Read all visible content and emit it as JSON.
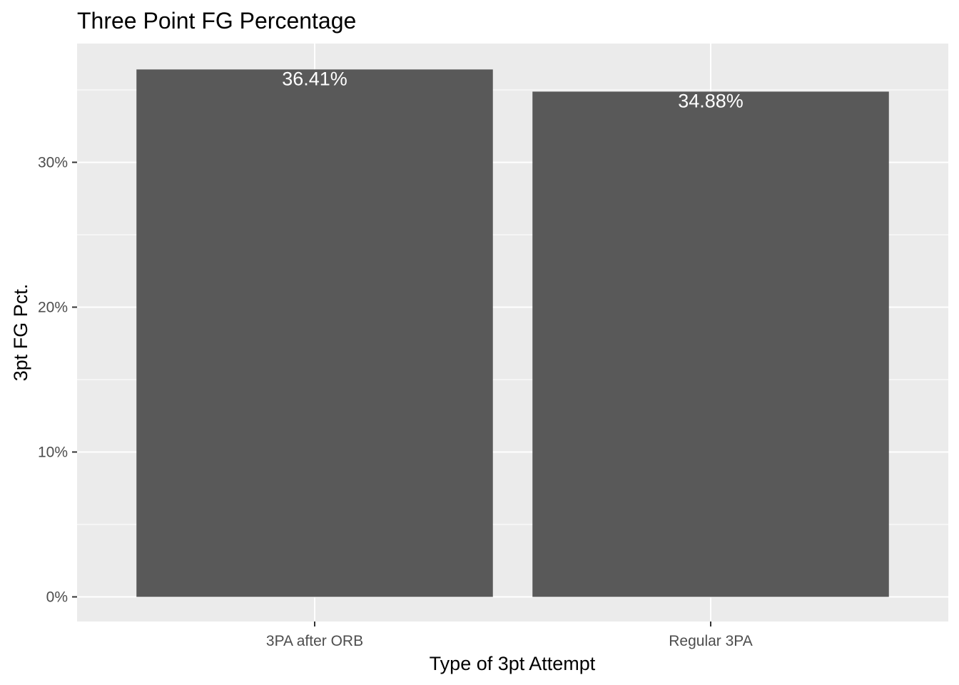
{
  "chart_data": {
    "type": "bar",
    "title": "Three Point FG Percentage",
    "xlabel": "Type of 3pt Attempt",
    "ylabel": "3pt FG Pct.",
    "categories": [
      "3PA after ORB",
      "Regular 3PA"
    ],
    "values": [
      36.41,
      34.88
    ],
    "value_labels": [
      "36.41%",
      "34.88%"
    ],
    "ylim": [
      -1.7,
      38.2
    ],
    "y_ticks": [
      0,
      10,
      20,
      30
    ],
    "y_tick_labels": [
      "0%",
      "10%",
      "20%",
      "30%"
    ],
    "grid": true,
    "legend": "none",
    "colors": {
      "bar": "#595959",
      "panel": "#ebebeb",
      "grid": "#ffffff",
      "bar_label": "#ffffff",
      "axis_tick": "#333333",
      "tick_text": "#4d4d4d"
    }
  }
}
